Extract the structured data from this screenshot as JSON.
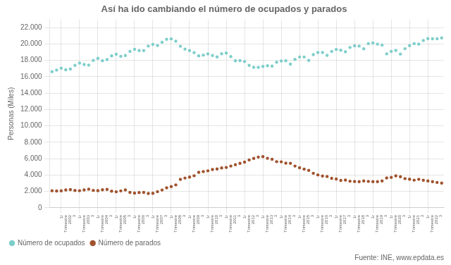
{
  "chart_data": {
    "type": "line",
    "title": "Así ha ido cambiando el número de ocupados y parados",
    "ylabel": "Personas (Miles)",
    "annotation": "Fuente: INE, www.epdata.es",
    "categories": [
      null,
      null,
      "1r\nTrimestre\n2002\n3",
      null,
      null,
      null,
      "1r\nTrimestre\n2003\n3",
      null,
      null,
      null,
      "1r\nTrimestre\n2004\n3",
      null,
      null,
      null,
      "1r\nTrimestre\n2005\n3",
      null,
      null,
      null,
      "1r\nTrimestre\n2006\n3",
      null,
      null,
      null,
      "1r\nTrimestre\n2007\n3",
      null,
      null,
      null,
      "1r\nTrimestre\n2008\n3",
      null,
      null,
      null,
      "1r\nTrimestre\n2009\n3",
      null,
      null,
      null,
      "1r\nTrimestre\n2010\n3",
      null,
      null,
      null,
      "1r\nTrimestre\n2011\n3",
      null,
      null,
      null,
      "1r\nTrimestre\n2012\n3",
      null,
      null,
      null,
      "1r\nTrimestre\n2013\n3",
      null,
      null,
      null,
      "1r\nTrimestre\n2014\n3",
      null,
      null,
      null,
      "1r\nTrimestre\n2015\n3",
      null,
      null,
      null,
      "1r\nTrimestre\n2016\n3",
      null,
      null,
      null,
      "1r\nTrimestre\n2017\n3",
      null,
      null,
      null,
      "1r\nTrimestre\n2018\n3",
      null,
      null,
      null,
      "1r\nTrimestre\n2019\n3",
      null,
      null,
      null,
      "1r\nTrimestre\n2020\n3",
      null,
      null,
      null,
      "1r\nTrimestre\n2021\n3",
      null,
      null,
      null,
      "1r\nTrimestre\n2022\n3",
      null,
      null,
      null
    ],
    "series": [
      {
        "name": "Número de ocupados",
        "color": "#7ececa",
        "marker": "circle",
        "line_style": "none",
        "values": [
          16629,
          16820,
          17050,
          16850,
          16950,
          17400,
          17680,
          17500,
          17430,
          18000,
          18250,
          17960,
          18100,
          18550,
          18750,
          18500,
          18600,
          19100,
          19350,
          19200,
          19200,
          19750,
          19950,
          19820,
          20220,
          20580,
          20630,
          20350,
          19730,
          19380,
          19200,
          18950,
          18550,
          18650,
          18800,
          18600,
          18430,
          18820,
          18900,
          18470,
          17950,
          17980,
          17860,
          17390,
          17160,
          17160,
          17270,
          17350,
          17310,
          17780,
          17930,
          17960,
          17550,
          18130,
          18420,
          18420,
          18000,
          18700,
          18970,
          18960,
          18620,
          19100,
          19340,
          19250,
          19050,
          19580,
          19780,
          19750,
          19410,
          20050,
          20130,
          19990,
          19878,
          18800,
          19100,
          19220,
          18779,
          19430,
          19800,
          20050,
          20000,
          20430,
          20660,
          20640,
          20650,
          20750
        ]
      },
      {
        "name": "Número de parados",
        "color": "#a0522d",
        "marker": "circle",
        "line_style": "none",
        "values": [
          2085,
          2050,
          2080,
          2180,
          2230,
          2120,
          2090,
          2190,
          2280,
          2130,
          2100,
          2200,
          2250,
          2030,
          1960,
          2070,
          2180,
          1880,
          1800,
          1870,
          1880,
          1750,
          1770,
          1980,
          2174,
          2440,
          2590,
          2800,
          3480,
          3640,
          3750,
          3920,
          4330,
          4430,
          4520,
          4680,
          4750,
          4870,
          4930,
          5100,
          5270,
          5430,
          5580,
          5850,
          6040,
          6200,
          6250,
          6050,
          5930,
          5640,
          5620,
          5460,
          5440,
          5100,
          4900,
          4730,
          4570,
          4220,
          4020,
          3880,
          3830,
          3600,
          3520,
          3350,
          3390,
          3250,
          3220,
          3190,
          3280,
          3230,
          3200,
          3190,
          3280,
          3650,
          3720,
          3900,
          3800,
          3570,
          3500,
          3380,
          3490,
          3370,
          3280,
          3200,
          3100,
          3030
        ]
      }
    ],
    "ylim": [
      0,
      23000
    ],
    "yticks": [
      0,
      {
        "value": 2000,
        "label": "2.000"
      },
      {
        "value": 4000,
        "label": "4.000"
      },
      {
        "value": 6000,
        "label": "6.000"
      },
      {
        "value": 8000,
        "label": "8.000"
      },
      {
        "value": 10000,
        "label": "10.000"
      },
      {
        "value": 12000,
        "label": "12.000"
      },
      {
        "value": 14000,
        "label": "14.000"
      },
      {
        "value": 16000,
        "label": "16.000"
      },
      {
        "value": 18000,
        "label": "18.000"
      },
      {
        "value": 20000,
        "label": "20.000"
      },
      {
        "value": 22000,
        "label": "22.000"
      }
    ],
    "grid": true,
    "legend": "bottom left"
  }
}
